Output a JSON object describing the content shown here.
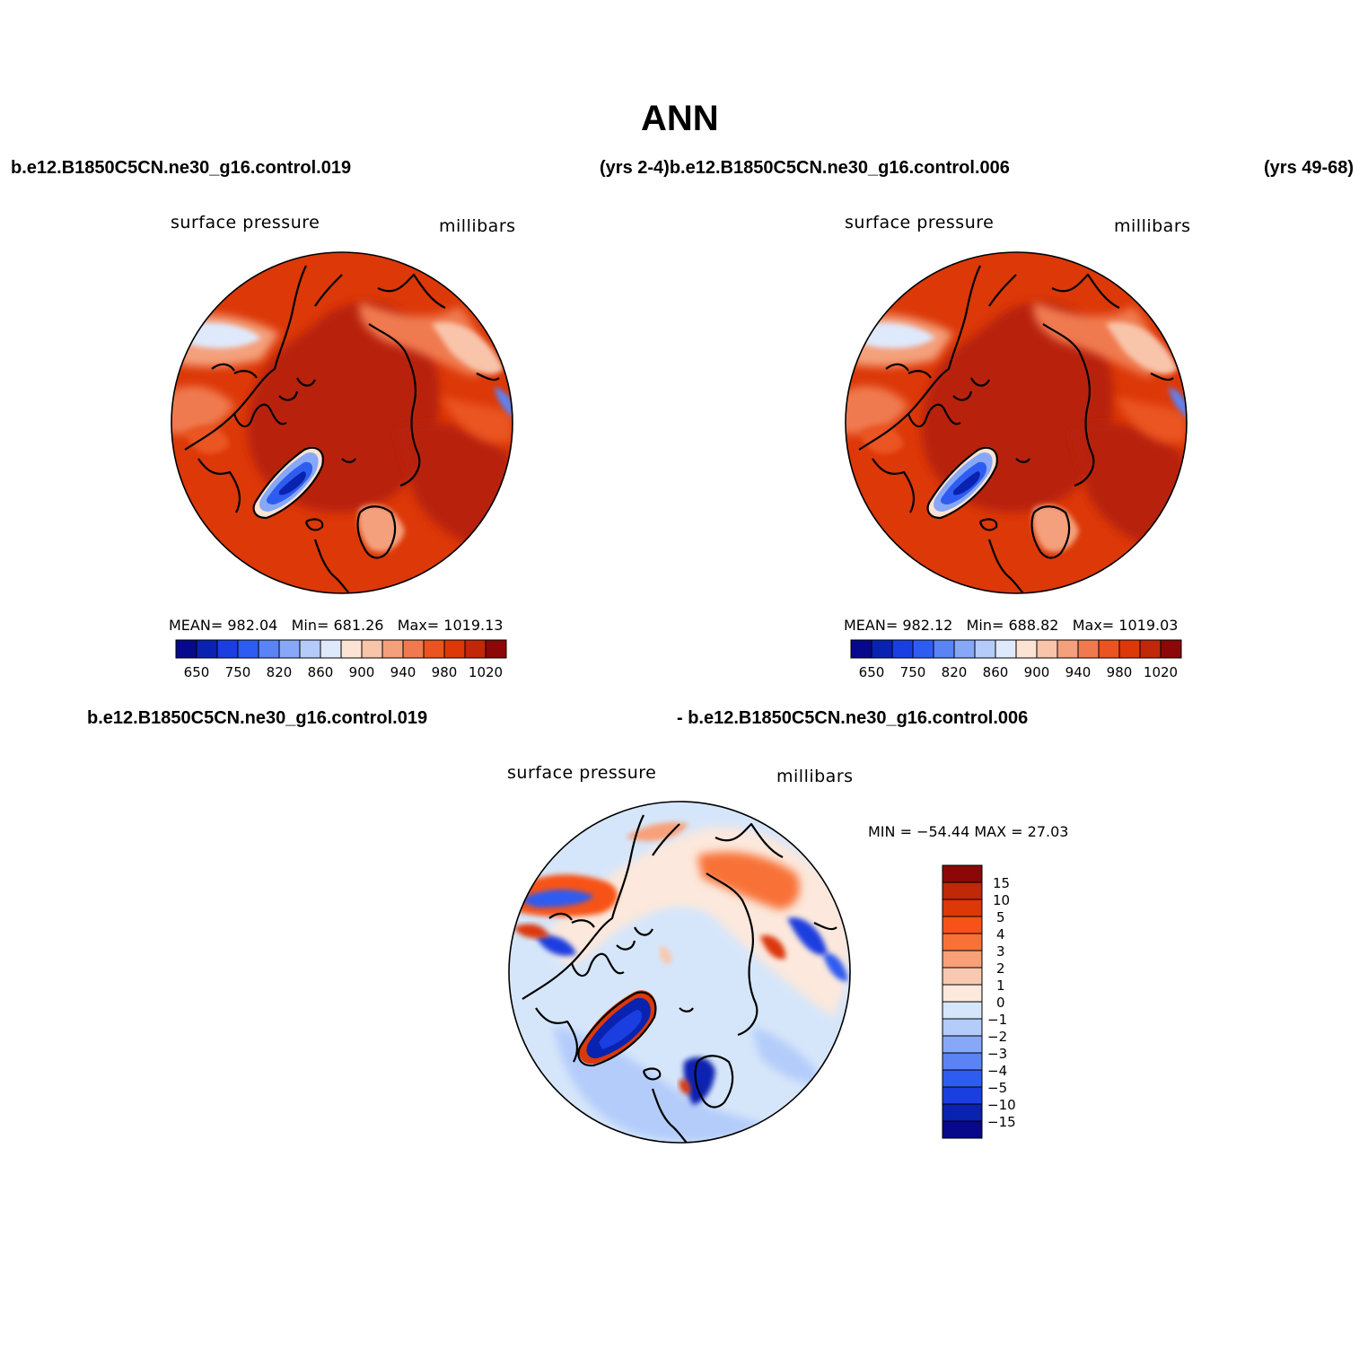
{
  "title": "ANN",
  "header": {
    "case1": "b.e12.B1850C5CN.ne30_g16.control.019",
    "years1_case2": "(yrs 2-4)b.e12.B1850C5CN.ne30_g16.control.006",
    "years2": "(yrs 49-68)",
    "diff_case1": "b.e12.B1850C5CN.ne30_g16.control.019",
    "diff_case2": "- b.e12.B1850C5CN.ne30_g16.control.006"
  },
  "panels": [
    {
      "variable": "surface pressure",
      "units": "millibars",
      "mean_label": "MEAN=",
      "mean": "982.04",
      "min_label": "Min=",
      "min": "681.26",
      "max_label": "Max=",
      "max": "1019.13"
    },
    {
      "variable": "surface pressure",
      "units": "millibars",
      "mean_label": "MEAN=",
      "mean": "982.12",
      "min_label": "Min=",
      "min": "688.82",
      "max_label": "Max=",
      "max": "1019.03"
    }
  ],
  "diff_panel": {
    "variable": "surface pressure",
    "units": "millibars",
    "minmax": "MIN = −54.44 MAX =   27.03"
  },
  "colorbar_abs": {
    "colors": [
      "#08088a",
      "#0a22b0",
      "#1a3ee0",
      "#2f5cf0",
      "#5a84f5",
      "#86a8f7",
      "#b5cbfa",
      "#dfe9fc",
      "#fde3d3",
      "#f8c4aa",
      "#f4a07c",
      "#f07a50",
      "#ea5420",
      "#dc3808",
      "#c02808",
      "#8c0808"
    ],
    "labels": [
      "650",
      "750",
      "820",
      "860",
      "900",
      "940",
      "980",
      "1020"
    ]
  },
  "colorbar_diff": {
    "colors": [
      "#8c0808",
      "#c02808",
      "#dc3808",
      "#f85218",
      "#f87238",
      "#f8a078",
      "#f8c8b0",
      "#fce8dc",
      "#d6e6fa",
      "#b3ccfa",
      "#87a8f8",
      "#5a84f5",
      "#2f5cf0",
      "#1a3ee0",
      "#0a22b0",
      "#08088a"
    ],
    "labels": [
      "15",
      "10",
      "5",
      "4",
      "3",
      "2",
      "1",
      "0",
      "−1",
      "−2",
      "−3",
      "−4",
      "−5",
      "−10",
      "−15"
    ]
  }
}
